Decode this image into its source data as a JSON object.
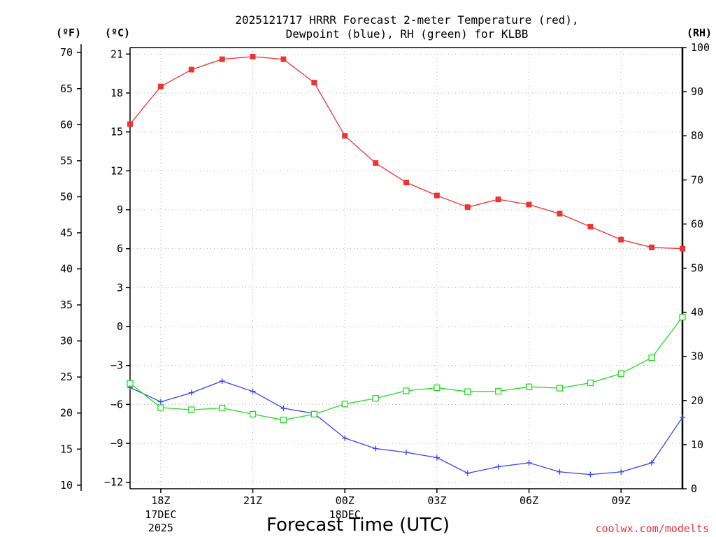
{
  "chart_data": {
    "type": "line",
    "title_lines": [
      "2025121717 HRRR Forecast 2-meter Temperature (red),",
      "Dewpoint (blue), RH (green) for KLBB"
    ],
    "xlabel": "Forecast Time (UTC)",
    "credit": "coolwx.com/modelts",
    "unit_labels": {
      "fahrenheit": "(ºF)",
      "celsius": "(ºC)",
      "rh": "(RH)"
    },
    "x_hours": [
      0,
      1,
      2,
      3,
      4,
      5,
      6,
      7,
      8,
      9,
      10,
      11,
      12,
      13,
      14,
      15,
      16,
      17,
      18
    ],
    "x_ticks": [
      {
        "hour": 1,
        "label": "18Z",
        "sub": [
          "17DEC",
          "2025"
        ]
      },
      {
        "hour": 4,
        "label": "21Z",
        "sub": []
      },
      {
        "hour": 7,
        "label": "00Z",
        "sub": [
          "18DEC"
        ]
      },
      {
        "hour": 10,
        "label": "03Z",
        "sub": []
      },
      {
        "hour": 13,
        "label": "06Z",
        "sub": []
      },
      {
        "hour": 16,
        "label": "09Z",
        "sub": []
      }
    ],
    "xlim": [
      0,
      18
    ],
    "celsius_axis": {
      "ylim": [
        -12.5,
        21.5
      ],
      "ticks": [
        21,
        18,
        15,
        12,
        9,
        6,
        3,
        0,
        -3,
        -6,
        -9,
        -12
      ],
      "tick_labels": [
        "21",
        "18",
        "15",
        "12",
        "9",
        "6",
        "3",
        "0",
        "−3",
        "−6",
        "−9",
        "−12"
      ]
    },
    "fahrenheit_axis": {
      "ticks": [
        70,
        65,
        60,
        55,
        50,
        45,
        40,
        35,
        30,
        25,
        20,
        15,
        10
      ],
      "tick_labels": [
        "70",
        "65",
        "60",
        "55",
        "50",
        "45",
        "40",
        "35",
        "30",
        "25",
        "20",
        "15",
        "10"
      ]
    },
    "rh_axis": {
      "ylim": [
        0,
        100
      ],
      "ticks": [
        100,
        90,
        80,
        70,
        60,
        50,
        40,
        30,
        20,
        10,
        0
      ],
      "tick_labels": [
        "100",
        "90",
        "80",
        "70",
        "60",
        "50",
        "40",
        "30",
        "20",
        "10",
        "0"
      ]
    },
    "series": [
      {
        "name": "Temperature",
        "unit": "C",
        "axis": "celsius",
        "color": "#ee3333",
        "marker": "filled-square",
        "values": [
          15.6,
          18.5,
          19.8,
          20.6,
          20.8,
          20.6,
          18.8,
          14.7,
          12.6,
          11.1,
          10.1,
          9.2,
          9.8,
          9.4,
          8.7,
          7.7,
          6.7,
          6.1,
          6.0
        ]
      },
      {
        "name": "Dewpoint",
        "unit": "C",
        "axis": "celsius",
        "color": "#3344ee",
        "marker": "plus",
        "values": [
          -4.7,
          -5.8,
          -5.1,
          -4.2,
          -5.0,
          -6.3,
          -6.7,
          -8.6,
          -9.4,
          -9.7,
          -10.1,
          -11.3,
          -10.8,
          -10.5,
          -11.2,
          -11.4,
          -11.2,
          -10.5,
          -7.0
        ]
      },
      {
        "name": "RH",
        "unit": "%",
        "axis": "rh",
        "color": "#22dd22",
        "marker": "open-square",
        "values": [
          23.9,
          18.4,
          17.9,
          18.3,
          16.9,
          15.6,
          16.9,
          19.2,
          20.5,
          22.2,
          22.9,
          22.0,
          22.1,
          23.1,
          22.8,
          24.0,
          26.1,
          29.7,
          38.9
        ]
      }
    ]
  }
}
